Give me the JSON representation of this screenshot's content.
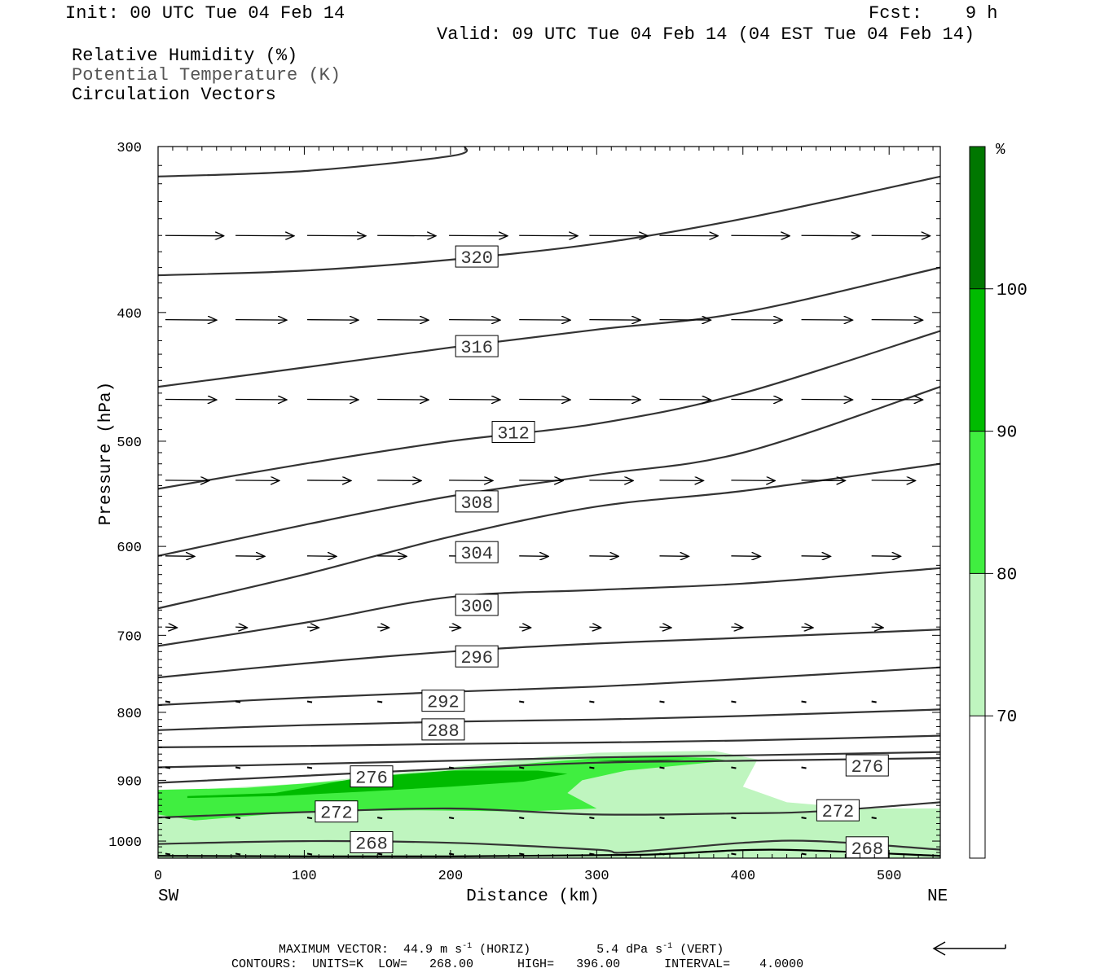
{
  "header": {
    "init": "Init: 00 UTC Tue 04 Feb 14",
    "fcst": "Fcst:    9 h",
    "valid": "Valid: 09 UTC Tue 04 Feb 14 (04 EST Tue 04 Feb 14)"
  },
  "legend": {
    "rh": "Relative Humidity (%)",
    "theta": "Potential Temperature (K)",
    "vectors": "Circulation Vectors"
  },
  "colors": {
    "rh70": "#bff5bf",
    "rh80": "#40ee40",
    "rh90": "#00bb00",
    "rh100": "#007700",
    "contour": "#333333"
  },
  "chart_data": {
    "type": "cross-section",
    "xlabel": "Distance (km)",
    "ylabel": "Pressure (hPa)",
    "xlim": [
      0,
      535
    ],
    "ylim": [
      1030,
      300
    ],
    "y_scale": "log-pressure",
    "x_ticks": [
      0,
      100,
      200,
      300,
      400,
      500
    ],
    "y_ticks": [
      300,
      400,
      500,
      600,
      700,
      800,
      900,
      1000
    ],
    "x_end_labels": {
      "left": "SW",
      "right": "NE"
    },
    "colorbar": {
      "unit": "%",
      "levels": [
        70,
        80,
        90,
        100
      ],
      "colors": [
        "#bff5bf",
        "#40ee40",
        "#00bb00",
        "#007700"
      ]
    },
    "contours": {
      "units": "K",
      "low": 268.0,
      "high": 396.0,
      "interval": 4.0,
      "lines": [
        {
          "value": 324,
          "label": "",
          "x": [
            0,
            100,
            200,
            210
          ],
          "p": [
            316,
            313,
            305,
            300
          ]
        },
        {
          "value": 320,
          "label": "320",
          "x": [
            0,
            100,
            200,
            300,
            400,
            535
          ],
          "p": [
            375,
            372,
            365,
            355,
            340,
            316
          ]
        },
        {
          "value": 316,
          "label": "316",
          "x": [
            0,
            100,
            200,
            300,
            400,
            535
          ],
          "p": [
            455,
            440,
            425,
            412,
            400,
            370
          ]
        },
        {
          "value": 312,
          "label": "312",
          "x": [
            0,
            100,
            200,
            300,
            400,
            535
          ],
          "p": [
            543,
            520,
            500,
            485,
            460,
            413
          ]
        },
        {
          "value": 308,
          "label": "308",
          "x": [
            0,
            100,
            200,
            300,
            400,
            535
          ],
          "p": [
            610,
            578,
            550,
            530,
            510,
            455
          ]
        },
        {
          "value": 304,
          "label": "304",
          "x": [
            0,
            100,
            200,
            300,
            400,
            535
          ],
          "p": [
            668,
            630,
            590,
            560,
            545,
            520
          ]
        },
        {
          "value": 300,
          "label": "300",
          "x": [
            0,
            100,
            200,
            300,
            400,
            535
          ],
          "p": [
            713,
            685,
            655,
            647,
            640,
            623
          ]
        },
        {
          "value": 296,
          "label": "296",
          "x": [
            0,
            100,
            200,
            300,
            400,
            535
          ],
          "p": [
            753,
            735,
            720,
            710,
            703,
            693
          ]
        },
        {
          "value": 292,
          "label": "292",
          "x": [
            0,
            100,
            200,
            300,
            400,
            535
          ],
          "p": [
            790,
            780,
            772,
            765,
            755,
            740
          ]
        },
        {
          "value": 288,
          "label": "288",
          "x": [
            0,
            100,
            200,
            300,
            400,
            535
          ],
          "p": [
            825,
            818,
            813,
            810,
            805,
            796
          ]
        },
        {
          "value": 284,
          "label": "",
          "x": [
            0,
            100,
            200,
            300,
            400,
            535
          ],
          "p": [
            850,
            848,
            845,
            843,
            840,
            833
          ]
        },
        {
          "value": 280,
          "label": "",
          "x": [
            0,
            100,
            200,
            300,
            400,
            535
          ],
          "p": [
            880,
            875,
            870,
            865,
            862,
            857
          ]
        },
        {
          "value": 276,
          "label": "276",
          "x": [
            0,
            100,
            200,
            300,
            400,
            535
          ],
          "p": [
            904,
            893,
            882,
            873,
            870,
            866
          ]
        },
        {
          "value": 272,
          "label": "272",
          "x": [
            0,
            100,
            200,
            300,
            400,
            450,
            535
          ],
          "p": [
            960,
            951,
            945,
            955,
            953,
            950,
            935
          ]
        },
        {
          "value": 268,
          "label": "268",
          "x": [
            0,
            100,
            200,
            300,
            320,
            400,
            450,
            535
          ],
          "p": [
            1005,
            1000,
            1003,
            1015,
            1020,
            1003,
            1000,
            1015
          ]
        }
      ],
      "label_positions": [
        {
          "value": "320",
          "x": 218,
          "p": 363
        },
        {
          "value": "316",
          "x": 218,
          "p": 424
        },
        {
          "value": "312",
          "x": 243,
          "p": 492
        },
        {
          "value": "308",
          "x": 218,
          "p": 555
        },
        {
          "value": "304",
          "x": 218,
          "p": 606
        },
        {
          "value": "300",
          "x": 218,
          "p": 664
        },
        {
          "value": "296",
          "x": 218,
          "p": 726
        },
        {
          "value": "292",
          "x": 195,
          "p": 784
        },
        {
          "value": "288",
          "x": 195,
          "p": 824
        },
        {
          "value": "276",
          "x": 485,
          "p": 877
        },
        {
          "value": "276",
          "x": 146,
          "p": 894
        },
        {
          "value": "272",
          "x": 465,
          "p": 948
        },
        {
          "value": "272",
          "x": 122,
          "p": 950
        },
        {
          "value": "268",
          "x": 146,
          "p": 1002
        },
        {
          "value": "268",
          "x": 485,
          "p": 1011
        }
      ]
    },
    "rh_fill": [
      {
        "level": 70,
        "x": [
          0,
          100,
          200,
          260,
          300,
          380,
          410,
          400,
          430,
          480,
          535,
          535,
          480,
          300,
          200,
          100,
          0
        ],
        "p": [
          918,
          905,
          880,
          865,
          858,
          855,
          868,
          910,
          935,
          945,
          945,
          1030,
          1030,
          1030,
          1030,
          1030,
          1030
        ]
      },
      {
        "level": 80,
        "x": [
          0,
          60,
          130,
          200,
          260,
          300,
          340,
          380,
          390,
          320,
          290,
          280,
          300,
          250,
          180,
          100,
          25,
          0
        ],
        "p": [
          915,
          912,
          900,
          885,
          873,
          866,
          863,
          866,
          870,
          885,
          900,
          920,
          945,
          950,
          948,
          950,
          965,
          955
        ]
      },
      {
        "level": 90,
        "x": [
          20,
          80,
          140,
          200,
          260,
          280,
          250,
          200,
          140,
          80,
          20
        ],
        "p": [
          925,
          920,
          895,
          885,
          885,
          890,
          902,
          910,
          918,
          925,
          928
        ]
      },
      {
        "level": 100,
        "x": [
          300,
          360,
          330
        ],
        "p": [
          870,
          868,
          872
        ]
      }
    ],
    "vectors": {
      "rows_p": [
        350,
        405,
        465,
        535,
        610,
        690,
        785,
        880,
        960,
        1022
      ],
      "cols_x": [
        5,
        53,
        102,
        150,
        199,
        247,
        295,
        343,
        392,
        440,
        488,
        535
      ],
      "row_lengths_km": [
        40,
        35,
        35,
        30,
        20,
        8,
        2,
        2,
        2,
        2
      ],
      "maximum_vector": {
        "horiz": "44.9",
        "horiz_units": "m s",
        "vert": "5.4",
        "vert_units": "dPa s",
        "exp": "-1"
      }
    }
  },
  "footer": {
    "max_vector_label": "MAXIMUM VECTOR:",
    "horiz_value": "44.9",
    "horiz_tag": "(HORIZ)",
    "vert_value": "5.4",
    "vert_tag": "(VERT)",
    "contours_line": "CONTOURS:  UNITS=K  LOW=   268.00      HIGH=   396.00      INTERVAL=    4.0000"
  }
}
